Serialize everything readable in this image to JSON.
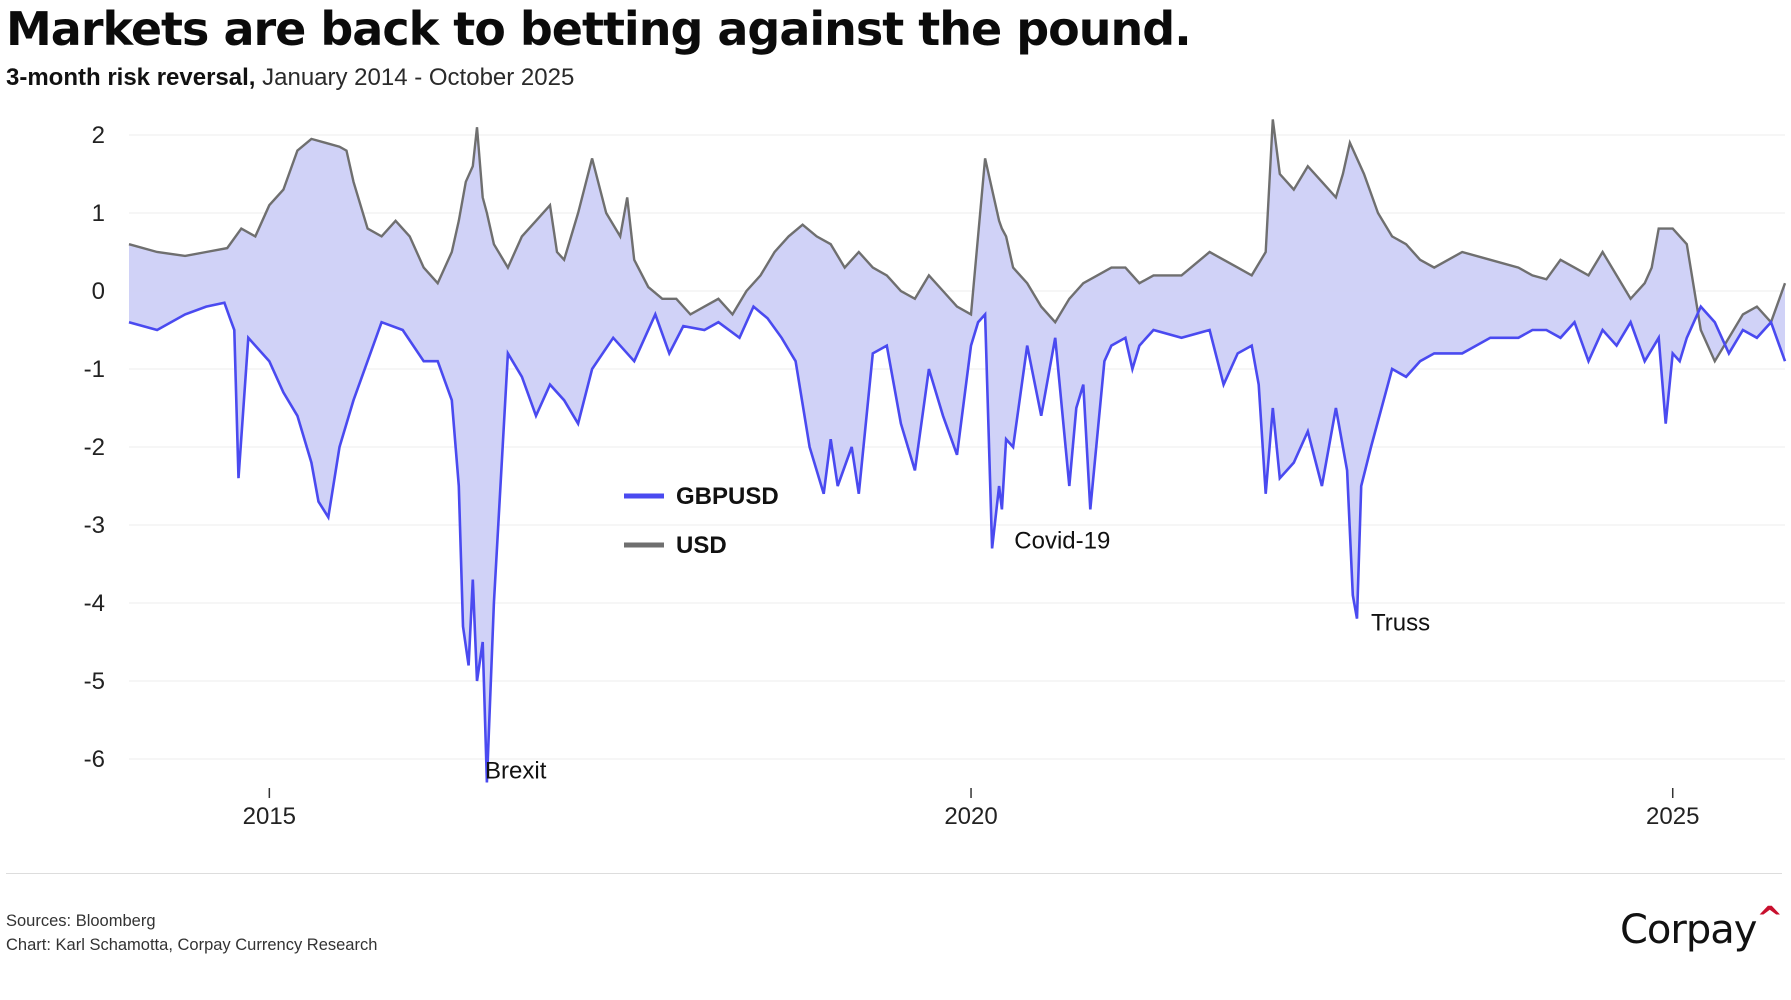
{
  "title": "Markets are back to betting against the pound.",
  "subtitle_bold": "3-month risk reversal,",
  "subtitle_rest": " January 2014 - October 2025",
  "footer": {
    "sources": "Sources: Bloomberg",
    "credit": "Chart: Karl Schamotta, Corpay Currency Research"
  },
  "logo_text": "Corpay",
  "logo_mark": "^",
  "colors": {
    "gbpusd": "#4a4af0",
    "usd": "#6f6f6f",
    "fill": "#cdd0f7",
    "logo_accent": "#c8102e"
  },
  "chart_data": {
    "type": "line",
    "title": "Markets are back to betting against the pound.",
    "subtitle": "3-month risk reversal, January 2014 - October 2025",
    "xlim": [
      2014.0,
      2025.8
    ],
    "ylim": [
      -6.4,
      2.2
    ],
    "y_ticks": [
      2,
      1,
      0,
      -1,
      -2,
      -3,
      -4,
      -5,
      -6
    ],
    "y_tick_labels": [
      "2",
      "1",
      "0",
      "-1",
      "-2",
      "-3",
      "-4",
      "-5",
      "-6"
    ],
    "x_ticks": [
      2015,
      2020,
      2025
    ],
    "x_tick_labels": [
      "2015",
      "2020",
      "2025"
    ],
    "grid": true,
    "shaded_between_series": true,
    "legend": [
      {
        "name": "GBPUSD",
        "color": "#4a4af0"
      },
      {
        "name": "USD",
        "color": "#6f6f6f"
      }
    ],
    "legend_position": "center",
    "annotations": [
      {
        "text": "Brexit",
        "x": 2016.48,
        "y": -6.3
      },
      {
        "text": "Covid-19",
        "x": 2020.23,
        "y": -3.3
      },
      {
        "text": "Truss",
        "x": 2022.75,
        "y": -4.2
      }
    ],
    "series": [
      {
        "name": "GBPUSD",
        "x": [
          2014.0,
          2014.2,
          2014.4,
          2014.55,
          2014.68,
          2014.72,
          2014.75,
          2014.78,
          2014.85,
          2015.0,
          2015.1,
          2015.2,
          2015.3,
          2015.35,
          2015.42,
          2015.5,
          2015.6,
          2015.8,
          2015.95,
          2016.1,
          2016.2,
          2016.3,
          2016.35,
          2016.38,
          2016.42,
          2016.45,
          2016.48,
          2016.52,
          2016.55,
          2016.6,
          2016.7,
          2016.8,
          2016.9,
          2017.0,
          2017.1,
          2017.2,
          2017.3,
          2017.45,
          2017.6,
          2017.75,
          2017.85,
          2017.95,
          2018.1,
          2018.2,
          2018.35,
          2018.45,
          2018.55,
          2018.65,
          2018.75,
          2018.85,
          2018.95,
          2019.0,
          2019.05,
          2019.15,
          2019.2,
          2019.3,
          2019.4,
          2019.5,
          2019.6,
          2019.7,
          2019.8,
          2019.9,
          2020.0,
          2020.05,
          2020.1,
          2020.15,
          2020.2,
          2020.22,
          2020.25,
          2020.3,
          2020.4,
          2020.5,
          2020.6,
          2020.7,
          2020.75,
          2020.8,
          2020.85,
          2020.95,
          2021.0,
          2021.1,
          2021.15,
          2021.2,
          2021.3,
          2021.5,
          2021.7,
          2021.8,
          2021.9,
          2022.0,
          2022.05,
          2022.1,
          2022.15,
          2022.2,
          2022.3,
          2022.4,
          2022.5,
          2022.6,
          2022.68,
          2022.72,
          2022.75,
          2022.78,
          2022.85,
          2023.0,
          2023.1,
          2023.2,
          2023.3,
          2023.5,
          2023.7,
          2023.9,
          2024.0,
          2024.1,
          2024.2,
          2024.3,
          2024.4,
          2024.5,
          2024.6,
          2024.7,
          2024.8,
          2024.9,
          2024.95,
          2025.0,
          2025.05,
          2025.1,
          2025.2,
          2025.3,
          2025.4,
          2025.5,
          2025.6,
          2025.7,
          2025.8
        ],
        "values": [
          -0.4,
          -0.5,
          -0.3,
          -0.2,
          -0.15,
          -0.35,
          -0.5,
          -2.4,
          -0.6,
          -0.9,
          -1.3,
          -1.6,
          -2.2,
          -2.7,
          -2.9,
          -2.0,
          -1.4,
          -0.4,
          -0.5,
          -0.9,
          -0.9,
          -1.4,
          -2.5,
          -4.3,
          -4.8,
          -3.7,
          -5.0,
          -4.5,
          -6.3,
          -4.0,
          -0.8,
          -1.1,
          -1.6,
          -1.2,
          -1.4,
          -1.7,
          -1.0,
          -0.6,
          -0.9,
          -0.3,
          -0.8,
          -0.45,
          -0.5,
          -0.4,
          -0.6,
          -0.2,
          -0.35,
          -0.6,
          -0.9,
          -2.0,
          -2.6,
          -1.9,
          -2.5,
          -2.0,
          -2.6,
          -0.8,
          -0.7,
          -1.7,
          -2.3,
          -1.0,
          -1.6,
          -2.1,
          -0.7,
          -0.4,
          -0.3,
          -3.3,
          -2.5,
          -2.8,
          -1.9,
          -2.0,
          -0.7,
          -1.6,
          -0.6,
          -2.5,
          -1.5,
          -1.2,
          -2.8,
          -0.9,
          -0.7,
          -0.6,
          -1.0,
          -0.7,
          -0.5,
          -0.6,
          -0.5,
          -1.2,
          -0.8,
          -0.7,
          -1.2,
          -2.6,
          -1.5,
          -2.4,
          -2.2,
          -1.8,
          -2.5,
          -1.5,
          -2.3,
          -3.9,
          -4.2,
          -2.5,
          -2.0,
          -1.0,
          -1.1,
          -0.9,
          -0.8,
          -0.8,
          -0.6,
          -0.6,
          -0.5,
          -0.5,
          -0.6,
          -0.4,
          -0.9,
          -0.5,
          -0.7,
          -0.4,
          -0.9,
          -0.6,
          -1.7,
          -0.8,
          -0.9,
          -0.6,
          -0.2,
          -0.4,
          -0.8,
          -0.5,
          -0.6,
          -0.4,
          -0.9
        ]
      },
      {
        "name": "USD",
        "x": [
          2014.0,
          2014.2,
          2014.4,
          2014.55,
          2014.7,
          2014.8,
          2014.9,
          2015.0,
          2015.1,
          2015.2,
          2015.3,
          2015.4,
          2015.5,
          2015.55,
          2015.6,
          2015.7,
          2015.8,
          2015.9,
          2016.0,
          2016.1,
          2016.2,
          2016.3,
          2016.35,
          2016.4,
          2016.45,
          2016.48,
          2016.52,
          2016.55,
          2016.6,
          2016.7,
          2016.8,
          2016.9,
          2017.0,
          2017.05,
          2017.1,
          2017.2,
          2017.3,
          2017.4,
          2017.5,
          2017.55,
          2017.6,
          2017.7,
          2017.8,
          2017.9,
          2018.0,
          2018.1,
          2018.2,
          2018.3,
          2018.4,
          2018.5,
          2018.6,
          2018.7,
          2018.8,
          2018.9,
          2019.0,
          2019.1,
          2019.2,
          2019.3,
          2019.4,
          2019.5,
          2019.6,
          2019.7,
          2019.8,
          2019.9,
          2020.0,
          2020.1,
          2020.2,
          2020.22,
          2020.25,
          2020.3,
          2020.4,
          2020.5,
          2020.6,
          2020.7,
          2020.8,
          2020.9,
          2021.0,
          2021.1,
          2021.2,
          2021.3,
          2021.5,
          2021.7,
          2021.9,
          2022.0,
          2022.1,
          2022.15,
          2022.2,
          2022.3,
          2022.4,
          2022.5,
          2022.6,
          2022.65,
          2022.7,
          2022.8,
          2022.9,
          2023.0,
          2023.1,
          2023.2,
          2023.3,
          2023.5,
          2023.7,
          2023.9,
          2024.0,
          2024.1,
          2024.2,
          2024.3,
          2024.4,
          2024.5,
          2024.6,
          2024.7,
          2024.8,
          2024.85,
          2024.9,
          2025.0,
          2025.1,
          2025.2,
          2025.3,
          2025.4,
          2025.5,
          2025.6,
          2025.7,
          2025.8
        ],
        "values": [
          0.6,
          0.5,
          0.45,
          0.5,
          0.55,
          0.8,
          0.7,
          1.1,
          1.3,
          1.8,
          1.95,
          1.9,
          1.85,
          1.8,
          1.4,
          0.8,
          0.7,
          0.9,
          0.7,
          0.3,
          0.1,
          0.5,
          0.9,
          1.4,
          1.6,
          2.1,
          1.2,
          1.0,
          0.6,
          0.3,
          0.7,
          0.9,
          1.1,
          0.5,
          0.4,
          1.0,
          1.7,
          1.0,
          0.7,
          1.2,
          0.4,
          0.05,
          -0.1,
          -0.1,
          -0.3,
          -0.2,
          -0.1,
          -0.3,
          0.0,
          0.2,
          0.5,
          0.7,
          0.85,
          0.7,
          0.6,
          0.3,
          0.5,
          0.3,
          0.2,
          0.0,
          -0.1,
          0.2,
          0.0,
          -0.2,
          -0.3,
          1.7,
          0.9,
          0.8,
          0.7,
          0.3,
          0.1,
          -0.2,
          -0.4,
          -0.1,
          0.1,
          0.2,
          0.3,
          0.3,
          0.1,
          0.2,
          0.2,
          0.5,
          0.3,
          0.2,
          0.5,
          2.2,
          1.5,
          1.3,
          1.6,
          1.4,
          1.2,
          1.5,
          1.9,
          1.5,
          1.0,
          0.7,
          0.6,
          0.4,
          0.3,
          0.5,
          0.4,
          0.3,
          0.2,
          0.15,
          0.4,
          0.3,
          0.2,
          0.5,
          0.2,
          -0.1,
          0.1,
          0.3,
          0.8,
          0.8,
          0.6,
          -0.5,
          -0.9,
          -0.6,
          -0.3,
          -0.2,
          -0.4,
          0.1
        ]
      }
    ]
  }
}
